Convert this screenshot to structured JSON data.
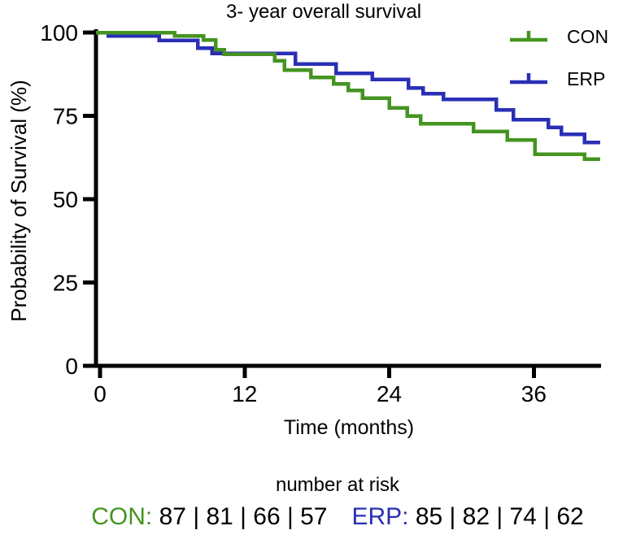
{
  "title": "3- year overall survival",
  "colors": {
    "con": "#459421",
    "erp": "#2a2fb5",
    "axis": "#000000",
    "text": "#000000"
  },
  "legend": [
    {
      "id": "con",
      "label": "CON",
      "color": "#459421"
    },
    {
      "id": "erp",
      "label": "ERP",
      "color": "#2a2fb5"
    }
  ],
  "chart_data": {
    "type": "line",
    "subtype": "kaplan-meier-step",
    "title": "3- year overall survival",
    "xlabel": "Time (months)",
    "ylabel": "Probability of Survival (%)",
    "xlim": [
      0,
      41.5
    ],
    "ylim": [
      0,
      100
    ],
    "xticks": [
      0,
      12,
      24,
      36
    ],
    "yticks": [
      0,
      25,
      50,
      75,
      100
    ],
    "grid": false,
    "legend_position": "top-right",
    "end_time": 41.5,
    "series": [
      {
        "name": "CON",
        "color": "#459421",
        "points": [
          [
            0,
            100
          ],
          [
            6.2,
            99.0
          ],
          [
            8.6,
            97.7
          ],
          [
            9.6,
            94.8
          ],
          [
            10.3,
            93.5
          ],
          [
            14.5,
            91.5
          ],
          [
            15.3,
            88.7
          ],
          [
            17.5,
            86.5
          ],
          [
            19.4,
            84.6
          ],
          [
            20.6,
            82.6
          ],
          [
            21.8,
            80.3
          ],
          [
            24.0,
            77.4
          ],
          [
            25.5,
            74.9
          ],
          [
            26.6,
            72.6
          ],
          [
            31.0,
            70.3
          ],
          [
            33.8,
            67.8
          ],
          [
            36.1,
            63.5
          ],
          [
            40.2,
            62.0
          ]
        ]
      },
      {
        "name": "ERP",
        "color": "#2a2fb5",
        "points": [
          [
            0,
            100
          ],
          [
            0.7,
            99.0
          ],
          [
            4.9,
            97.6
          ],
          [
            8.1,
            95.3
          ],
          [
            9.3,
            93.7
          ],
          [
            16.2,
            90.6
          ],
          [
            19.6,
            87.8
          ],
          [
            22.6,
            85.9
          ],
          [
            25.6,
            83.4
          ],
          [
            26.8,
            81.7
          ],
          [
            28.5,
            80.0
          ],
          [
            32.9,
            76.8
          ],
          [
            34.3,
            73.9
          ],
          [
            37.2,
            71.5
          ],
          [
            38.3,
            69.4
          ],
          [
            40.2,
            67.0
          ]
        ]
      }
    ]
  },
  "risk_table": {
    "heading": "number at risk",
    "separator": " | ",
    "rows": [
      {
        "label": "CON:",
        "color": "#459421",
        "values": [
          87,
          81,
          66,
          57
        ]
      },
      {
        "label": "ERP:",
        "color": "#2a2fb5",
        "values": [
          85,
          82,
          74,
          62
        ]
      }
    ]
  }
}
